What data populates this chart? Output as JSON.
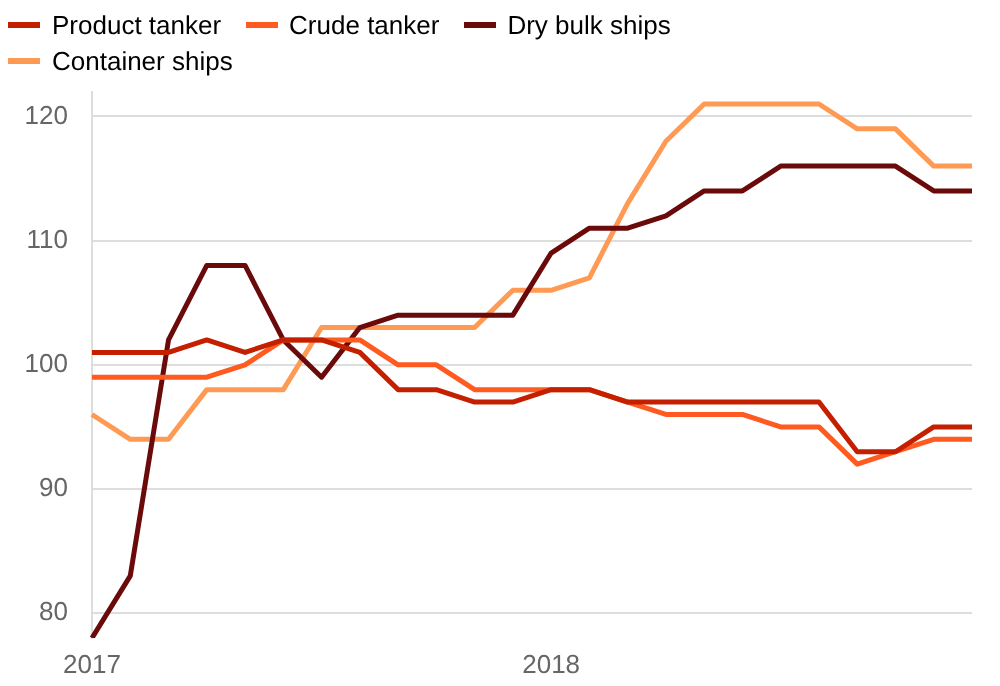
{
  "chart_data": {
    "type": "line",
    "categories": [
      "2017",
      null,
      null,
      null,
      null,
      null,
      null,
      null,
      null,
      null,
      null,
      null,
      "2018",
      null,
      null,
      null,
      null,
      null,
      null,
      null,
      null,
      null,
      null,
      null
    ],
    "series": [
      {
        "name": "Product tanker",
        "color": "#c42000",
        "values": [
          101,
          101,
          101,
          102,
          101,
          102,
          102,
          101,
          98,
          98,
          97,
          97,
          98,
          98,
          97,
          97,
          97,
          97,
          97,
          97,
          93,
          93,
          95,
          95
        ]
      },
      {
        "name": "Crude tanker",
        "color": "#ff5a1f",
        "values": [
          99,
          99,
          99,
          99,
          100,
          102,
          102,
          102,
          100,
          100,
          98,
          98,
          98,
          98,
          97,
          96,
          96,
          96,
          95,
          95,
          92,
          93,
          94,
          94
        ]
      },
      {
        "name": "Dry bulk ships",
        "color": "#6b0a0a",
        "values": [
          78,
          83,
          102,
          108,
          108,
          102,
          99,
          103,
          104,
          104,
          104,
          104,
          109,
          111,
          111,
          112,
          114,
          114,
          116,
          116,
          116,
          116,
          114,
          114
        ]
      },
      {
        "name": "Container ships",
        "color": "#ff9a55",
        "values": [
          96,
          94,
          94,
          98,
          98,
          98,
          103,
          103,
          103,
          103,
          103,
          106,
          106,
          107,
          113,
          118,
          121,
          121,
          121,
          121,
          119,
          119,
          116,
          116
        ]
      }
    ],
    "ylim": [
      78,
      122
    ],
    "yticks": [
      80,
      90,
      100,
      110,
      120
    ],
    "grid": "y",
    "legend": "top left",
    "marker": "none",
    "line_style": "solid"
  }
}
